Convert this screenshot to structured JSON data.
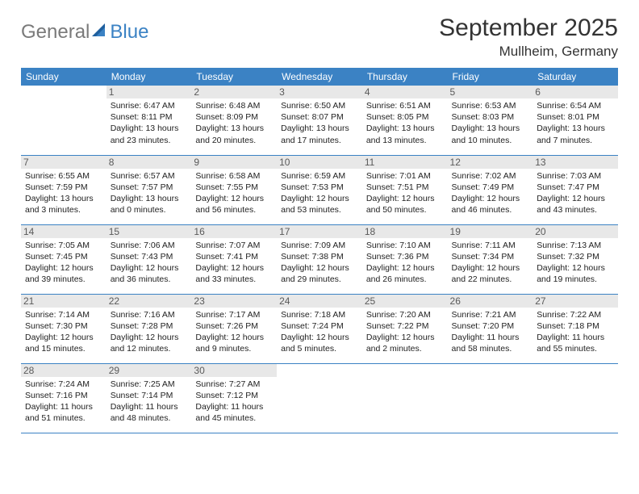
{
  "brand": {
    "part1": "General",
    "part2": "Blue"
  },
  "title": "September 2025",
  "location": "Mullheim, Germany",
  "colors": {
    "header_bg": "#3b82c4",
    "header_fg": "#ffffff",
    "daynum_bg": "#e8e8e8",
    "row_border": "#3b82c4",
    "logo_gray": "#7a7a7a",
    "logo_blue": "#3b82c4",
    "page_bg": "#ffffff",
    "text": "#333333"
  },
  "weekdays": [
    "Sunday",
    "Monday",
    "Tuesday",
    "Wednesday",
    "Thursday",
    "Friday",
    "Saturday"
  ],
  "grid": [
    [
      {
        "day": "",
        "sunrise": "",
        "sunset": "",
        "daylight": ""
      },
      {
        "day": "1",
        "sunrise": "Sunrise: 6:47 AM",
        "sunset": "Sunset: 8:11 PM",
        "daylight": "Daylight: 13 hours and 23 minutes."
      },
      {
        "day": "2",
        "sunrise": "Sunrise: 6:48 AM",
        "sunset": "Sunset: 8:09 PM",
        "daylight": "Daylight: 13 hours and 20 minutes."
      },
      {
        "day": "3",
        "sunrise": "Sunrise: 6:50 AM",
        "sunset": "Sunset: 8:07 PM",
        "daylight": "Daylight: 13 hours and 17 minutes."
      },
      {
        "day": "4",
        "sunrise": "Sunrise: 6:51 AM",
        "sunset": "Sunset: 8:05 PM",
        "daylight": "Daylight: 13 hours and 13 minutes."
      },
      {
        "day": "5",
        "sunrise": "Sunrise: 6:53 AM",
        "sunset": "Sunset: 8:03 PM",
        "daylight": "Daylight: 13 hours and 10 minutes."
      },
      {
        "day": "6",
        "sunrise": "Sunrise: 6:54 AM",
        "sunset": "Sunset: 8:01 PM",
        "daylight": "Daylight: 13 hours and 7 minutes."
      }
    ],
    [
      {
        "day": "7",
        "sunrise": "Sunrise: 6:55 AM",
        "sunset": "Sunset: 7:59 PM",
        "daylight": "Daylight: 13 hours and 3 minutes."
      },
      {
        "day": "8",
        "sunrise": "Sunrise: 6:57 AM",
        "sunset": "Sunset: 7:57 PM",
        "daylight": "Daylight: 13 hours and 0 minutes."
      },
      {
        "day": "9",
        "sunrise": "Sunrise: 6:58 AM",
        "sunset": "Sunset: 7:55 PM",
        "daylight": "Daylight: 12 hours and 56 minutes."
      },
      {
        "day": "10",
        "sunrise": "Sunrise: 6:59 AM",
        "sunset": "Sunset: 7:53 PM",
        "daylight": "Daylight: 12 hours and 53 minutes."
      },
      {
        "day": "11",
        "sunrise": "Sunrise: 7:01 AM",
        "sunset": "Sunset: 7:51 PM",
        "daylight": "Daylight: 12 hours and 50 minutes."
      },
      {
        "day": "12",
        "sunrise": "Sunrise: 7:02 AM",
        "sunset": "Sunset: 7:49 PM",
        "daylight": "Daylight: 12 hours and 46 minutes."
      },
      {
        "day": "13",
        "sunrise": "Sunrise: 7:03 AM",
        "sunset": "Sunset: 7:47 PM",
        "daylight": "Daylight: 12 hours and 43 minutes."
      }
    ],
    [
      {
        "day": "14",
        "sunrise": "Sunrise: 7:05 AM",
        "sunset": "Sunset: 7:45 PM",
        "daylight": "Daylight: 12 hours and 39 minutes."
      },
      {
        "day": "15",
        "sunrise": "Sunrise: 7:06 AM",
        "sunset": "Sunset: 7:43 PM",
        "daylight": "Daylight: 12 hours and 36 minutes."
      },
      {
        "day": "16",
        "sunrise": "Sunrise: 7:07 AM",
        "sunset": "Sunset: 7:41 PM",
        "daylight": "Daylight: 12 hours and 33 minutes."
      },
      {
        "day": "17",
        "sunrise": "Sunrise: 7:09 AM",
        "sunset": "Sunset: 7:38 PM",
        "daylight": "Daylight: 12 hours and 29 minutes."
      },
      {
        "day": "18",
        "sunrise": "Sunrise: 7:10 AM",
        "sunset": "Sunset: 7:36 PM",
        "daylight": "Daylight: 12 hours and 26 minutes."
      },
      {
        "day": "19",
        "sunrise": "Sunrise: 7:11 AM",
        "sunset": "Sunset: 7:34 PM",
        "daylight": "Daylight: 12 hours and 22 minutes."
      },
      {
        "day": "20",
        "sunrise": "Sunrise: 7:13 AM",
        "sunset": "Sunset: 7:32 PM",
        "daylight": "Daylight: 12 hours and 19 minutes."
      }
    ],
    [
      {
        "day": "21",
        "sunrise": "Sunrise: 7:14 AM",
        "sunset": "Sunset: 7:30 PM",
        "daylight": "Daylight: 12 hours and 15 minutes."
      },
      {
        "day": "22",
        "sunrise": "Sunrise: 7:16 AM",
        "sunset": "Sunset: 7:28 PM",
        "daylight": "Daylight: 12 hours and 12 minutes."
      },
      {
        "day": "23",
        "sunrise": "Sunrise: 7:17 AM",
        "sunset": "Sunset: 7:26 PM",
        "daylight": "Daylight: 12 hours and 9 minutes."
      },
      {
        "day": "24",
        "sunrise": "Sunrise: 7:18 AM",
        "sunset": "Sunset: 7:24 PM",
        "daylight": "Daylight: 12 hours and 5 minutes."
      },
      {
        "day": "25",
        "sunrise": "Sunrise: 7:20 AM",
        "sunset": "Sunset: 7:22 PM",
        "daylight": "Daylight: 12 hours and 2 minutes."
      },
      {
        "day": "26",
        "sunrise": "Sunrise: 7:21 AM",
        "sunset": "Sunset: 7:20 PM",
        "daylight": "Daylight: 11 hours and 58 minutes."
      },
      {
        "day": "27",
        "sunrise": "Sunrise: 7:22 AM",
        "sunset": "Sunset: 7:18 PM",
        "daylight": "Daylight: 11 hours and 55 minutes."
      }
    ],
    [
      {
        "day": "28",
        "sunrise": "Sunrise: 7:24 AM",
        "sunset": "Sunset: 7:16 PM",
        "daylight": "Daylight: 11 hours and 51 minutes."
      },
      {
        "day": "29",
        "sunrise": "Sunrise: 7:25 AM",
        "sunset": "Sunset: 7:14 PM",
        "daylight": "Daylight: 11 hours and 48 minutes."
      },
      {
        "day": "30",
        "sunrise": "Sunrise: 7:27 AM",
        "sunset": "Sunset: 7:12 PM",
        "daylight": "Daylight: 11 hours and 45 minutes."
      },
      {
        "day": "",
        "sunrise": "",
        "sunset": "",
        "daylight": ""
      },
      {
        "day": "",
        "sunrise": "",
        "sunset": "",
        "daylight": ""
      },
      {
        "day": "",
        "sunrise": "",
        "sunset": "",
        "daylight": ""
      },
      {
        "day": "",
        "sunrise": "",
        "sunset": "",
        "daylight": ""
      }
    ]
  ]
}
